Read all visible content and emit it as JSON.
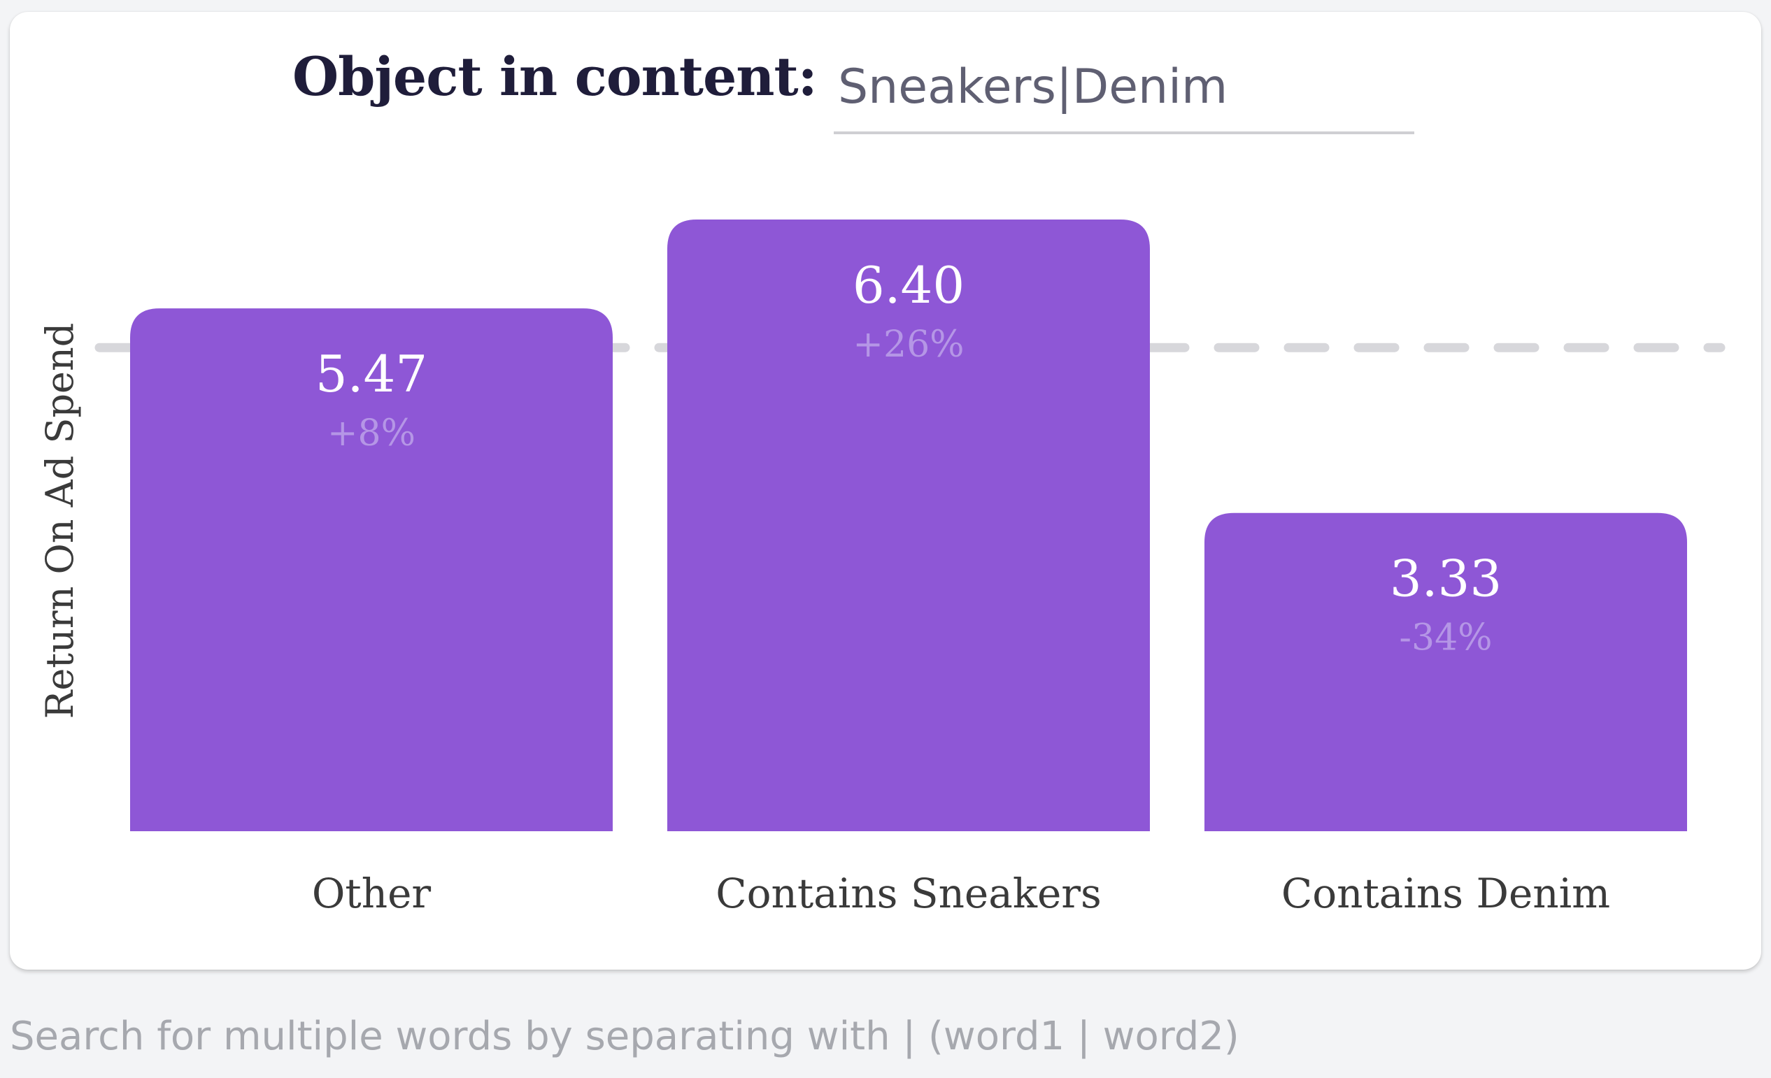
{
  "filter": {
    "label": "Object in content:",
    "value": "Sneakers|Denim"
  },
  "helper": {
    "text": "Search for multiple words by separating with | (word1 | word2)"
  },
  "colors": {
    "bar": "#8e57d6",
    "value_text": "#ffffff",
    "delta_text": "#b596e6",
    "reference_line": "#d7d7db",
    "axis_text": "#3a3a3a"
  },
  "chart_data": {
    "type": "bar",
    "ylabel": "Return On Ad Spend",
    "categories": [
      "Other",
      "Contains Sneakers",
      "Contains Denim"
    ],
    "values": [
      5.47,
      6.4,
      3.33
    ],
    "value_labels": [
      "5.47",
      "6.40",
      "3.33"
    ],
    "delta_labels": [
      "+8%",
      "+26%",
      "-34%"
    ],
    "reference_value": 5.06,
    "reference_style": "dashed",
    "ylim": [
      0,
      6.4
    ],
    "grid": false
  }
}
